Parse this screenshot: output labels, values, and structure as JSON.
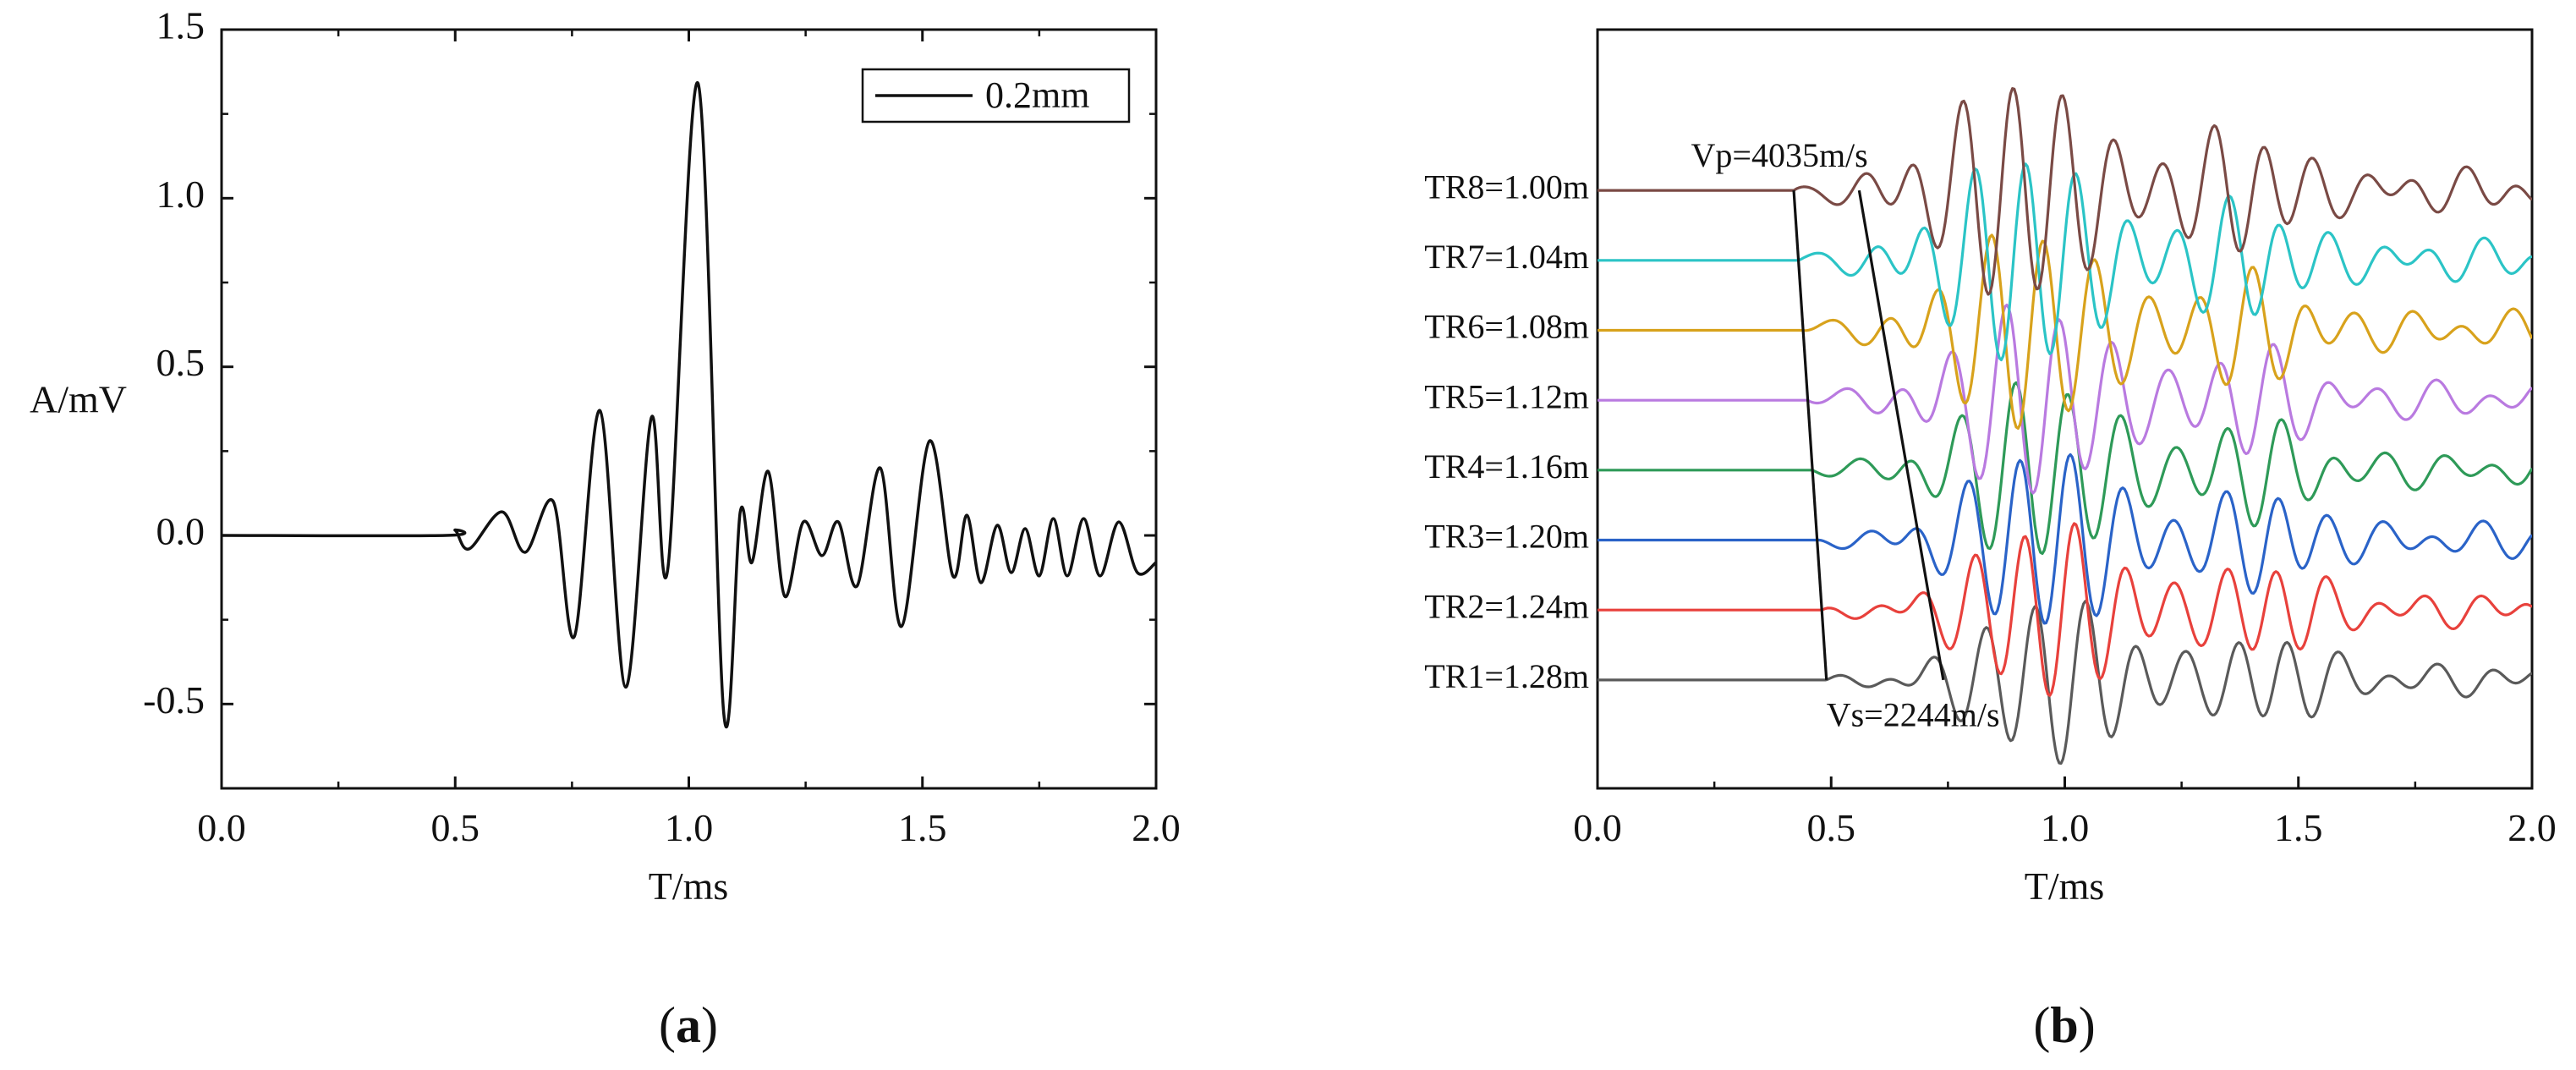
{
  "chart_data": [
    {
      "panel": "(a)",
      "panel_tag": "a",
      "type": "line",
      "xlabel": "T/ms",
      "ylabel": "A/mV",
      "xlim": [
        0.0,
        2.0
      ],
      "ylim": [
        -0.75,
        1.5
      ],
      "xticks": [
        0.0,
        0.5,
        1.0,
        1.5,
        2.0
      ],
      "xtick_labels": [
        "0.0",
        "0.5",
        "1.0",
        "1.5",
        "2.0"
      ],
      "yticks": [
        -0.5,
        0.0,
        0.5,
        1.0,
        1.5
      ],
      "ytick_labels": [
        "-0.5",
        "0.0",
        "0.5",
        "1.0",
        "1.5"
      ],
      "legend": [
        "0.2mm"
      ],
      "legend_position": "top-right",
      "series": [
        {
          "name": "0.2mm",
          "color": "#111111",
          "x": [
            0.0,
            0.48,
            0.5,
            0.53,
            0.6,
            0.65,
            0.71,
            0.755,
            0.81,
            0.865,
            0.92,
            0.955,
            1.02,
            1.075,
            1.11,
            1.135,
            1.17,
            1.205,
            1.245,
            1.285,
            1.32,
            1.36,
            1.41,
            1.455,
            1.515,
            1.565,
            1.595,
            1.625,
            1.66,
            1.69,
            1.72,
            1.75,
            1.78,
            1.81,
            1.845,
            1.88,
            1.92,
            1.96,
            2.0
          ],
          "y": [
            0.0,
            0.0,
            0.015,
            -0.04,
            0.07,
            -0.05,
            0.1,
            -0.3,
            0.37,
            -0.45,
            0.35,
            -0.1,
            1.34,
            -0.53,
            0.07,
            -0.08,
            0.19,
            -0.18,
            0.04,
            -0.06,
            0.04,
            -0.15,
            0.2,
            -0.27,
            0.28,
            -0.12,
            0.06,
            -0.14,
            0.03,
            -0.11,
            0.02,
            -0.12,
            0.05,
            -0.12,
            0.05,
            -0.12,
            0.04,
            -0.11,
            -0.08
          ]
        }
      ]
    },
    {
      "panel": "(b)",
      "panel_tag": "b",
      "type": "line",
      "xlabel": "T/ms",
      "ylabel": "",
      "xlim": [
        0.0,
        2.0
      ],
      "xticks": [
        0.0,
        0.5,
        1.0,
        1.5,
        2.0
      ],
      "xtick_labels": [
        "0.0",
        "0.5",
        "1.0",
        "1.5",
        "2.0"
      ],
      "y_axis_ticks": "none",
      "baseline_spacing": 1.0,
      "baselines": [
        1,
        2,
        3,
        4,
        5,
        6,
        7,
        8
      ],
      "ylim": [
        -0.55,
        10.3
      ],
      "annotations": [
        {
          "text": "Vp=4035m/s",
          "x": 0.2,
          "y": 8.45
        },
        {
          "text": "Vs=2244m/s",
          "x": 0.49,
          "y": 0.45
        }
      ],
      "velocity_lines": [
        {
          "name": "Vp",
          "x": [
            0.42,
            0.49
          ],
          "y": [
            8.0,
            1.0
          ]
        },
        {
          "name": "Vs",
          "x": [
            0.56,
            0.74
          ],
          "y": [
            8.0,
            1.0
          ]
        }
      ],
      "series": [
        {
          "name": "TR1=1.28m",
          "label": "TR1=1.28m",
          "color": "#5a5a5a",
          "baseline": 1,
          "onset": 0.49,
          "gain": 1.6
        },
        {
          "name": "TR2=1.24m",
          "label": "TR2=1.24m",
          "color": "#e8413c",
          "baseline": 2,
          "onset": 0.48,
          "gain": 1.7
        },
        {
          "name": "TR3=1.20m",
          "label": "TR3=1.20m",
          "color": "#2a63c8",
          "baseline": 3,
          "onset": 0.47,
          "gain": 1.8
        },
        {
          "name": "TR4=1.16m",
          "label": "TR4=1.16m",
          "color": "#2e9a58",
          "baseline": 4,
          "onset": 0.46,
          "gain": 1.8
        },
        {
          "name": "TR5=1.12m",
          "label": "TR5=1.12m",
          "color": "#b97ae0",
          "baseline": 5,
          "onset": 0.45,
          "gain": 1.9
        },
        {
          "name": "TR6=1.08m",
          "label": "TR6=1.08m",
          "color": "#d8a21c",
          "baseline": 6,
          "onset": 0.44,
          "gain": 2.0
        },
        {
          "name": "TR7=1.04m",
          "label": "TR7=1.04m",
          "color": "#2bc4c6",
          "baseline": 7,
          "onset": 0.43,
          "gain": 2.1
        },
        {
          "name": "TR8=1.00m",
          "label": "TR8=1.00m",
          "color": "#7a4a45",
          "baseline": 8,
          "onset": 0.42,
          "gain": 2.2
        }
      ]
    }
  ]
}
